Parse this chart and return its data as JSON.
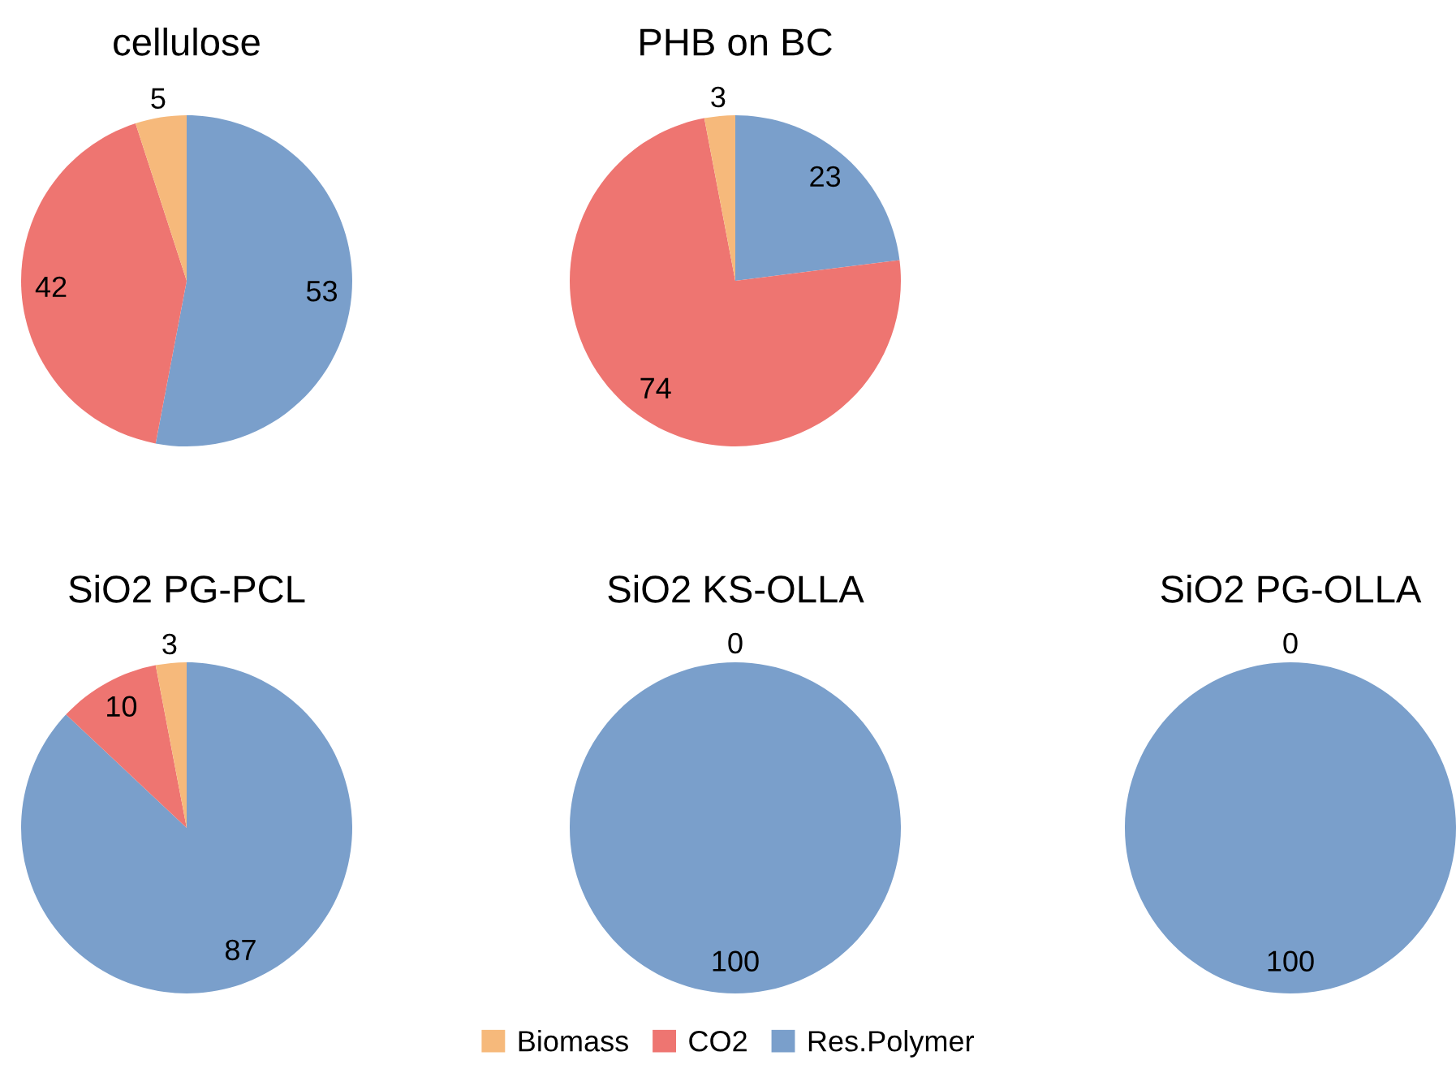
{
  "chart_data": [
    {
      "type": "pie",
      "title": "cellulose",
      "categories": [
        "Res.Polymer",
        "CO2",
        "Biomass"
      ],
      "values": [
        53,
        42,
        5
      ],
      "colors": [
        "#7a9fcb",
        "#ee7571",
        "#f6b97b"
      ],
      "value_labels": [
        "53",
        "42",
        "5"
      ],
      "legend": "bottom"
    },
    {
      "type": "pie",
      "title": "PHB on BC",
      "categories": [
        null,
        null,
        null
      ],
      "values": [
        23,
        74,
        3
      ],
      "colors": [
        "#7a9fcb",
        "#ee7571",
        "#f6b97b"
      ],
      "value_labels": [
        "23",
        "74",
        "3"
      ]
    },
    {
      "type": "pie",
      "title": "SiO2 PG-PCL",
      "categories": [
        null,
        null,
        null
      ],
      "values": [
        87,
        10,
        3
      ],
      "colors": [
        "#7a9fcb",
        "#ee7571",
        "#f6b97b"
      ],
      "value_labels": [
        "87",
        "10",
        "3"
      ]
    },
    {
      "type": "pie",
      "title": "SiO2 KS-OLLA",
      "categories": [
        null,
        null,
        null
      ],
      "values": [
        100,
        0,
        0
      ],
      "colors": [
        "#7a9fcb",
        "#ee7571",
        "#f6b97b"
      ],
      "value_labels": [
        "100",
        "0",
        null
      ]
    },
    {
      "type": "pie",
      "title": "SiO2 PG-OLLA",
      "categories": [
        null,
        null,
        null
      ],
      "values": [
        100,
        0,
        0
      ],
      "colors": [
        "#7a9fcb",
        "#ee7571",
        "#f6b97b"
      ],
      "value_labels": [
        "100",
        "0",
        null
      ]
    }
  ]
}
